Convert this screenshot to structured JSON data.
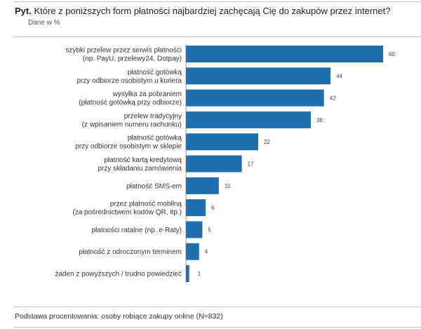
{
  "header": {
    "prefix": "Pyt.",
    "question": "Które z poniższych form płatności najbardziej zachęcają Cię do zakupów przez internet?",
    "subtitle": "Dane w %"
  },
  "footer": {
    "note": "Podstawa procentowania: osoby robiące zakupy online (N=832)"
  },
  "chart_data": {
    "type": "bar",
    "orientation": "horizontal",
    "title": "Które z poniższych form płatności najbardziej zachęcają Cię do zakupów przez internet?",
    "ylabel": "Dane w %",
    "bar_color": "#1f6fae",
    "categories": [
      [
        "szybki przelew przez serwis płatności",
        "(np. PayU, przelewy24, Dotpay)"
      ],
      [
        "płatność gotówką",
        "przy odbiorze osobistym u kuriera"
      ],
      [
        "wysyłka za pobraniem",
        "(płatność gotówką przy odbiorze)"
      ],
      [
        "przelew tradycyjny",
        "(z wpisaniem numeru rachunku)"
      ],
      [
        "płatność gotówką",
        "przy odbiorze osobistym w sklepie"
      ],
      [
        "płatność kartą kredytową",
        "przy składaniu zamówienia"
      ],
      [
        "płatność SMS-em"
      ],
      [
        "przez płatność mobilną",
        "(za pośrednictwem kodów QR, itp.)"
      ],
      [
        "płatności ratalne (np. e-Raty)"
      ],
      [
        "płatność z odroczonym terminem"
      ],
      [
        "żaden z powyższych / trudno powiedzieć"
      ]
    ],
    "values": [
      60,
      44,
      42,
      38,
      22,
      17,
      10,
      6,
      5,
      4,
      1
    ],
    "xlim": [
      0,
      60
    ]
  }
}
